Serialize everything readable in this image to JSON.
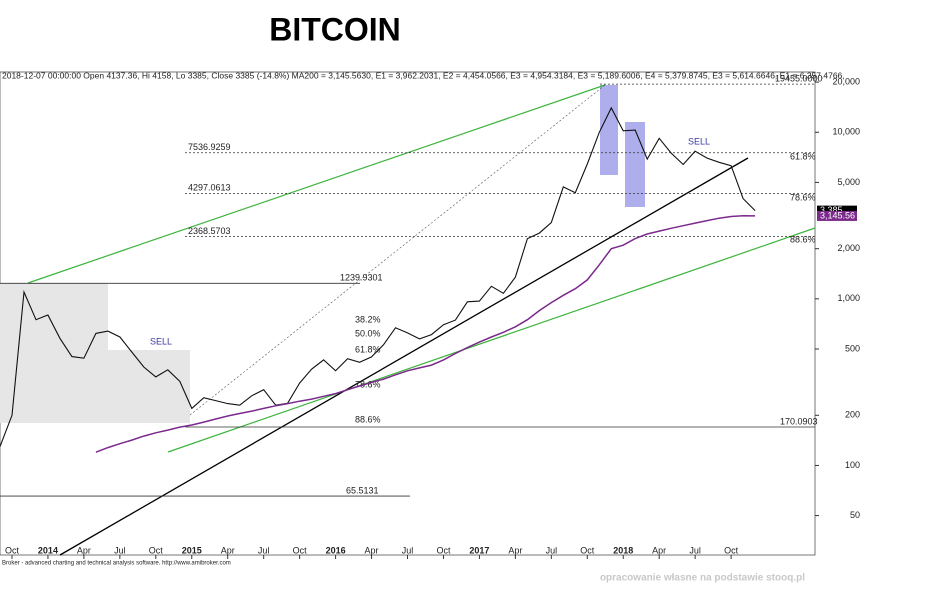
{
  "chart_data": {
    "type": "line",
    "title": "BITCOIN",
    "info": "2018-12-07 00:00:00 Open 4137.36, Hi 4158, Lo 3385, Close 3385 (-14.8%) MA200 = 3,145.5630, E1 = 3,962.2031, E2 = 4,454.0566, E3 = 4,954.3184, E3 = 5,189.6006, E4 = 5,379.8745, E3 = 5,614.6646, E1 = 6,357.4766,",
    "log_scale": true,
    "xlim": [
      "2013-09",
      "2019-05"
    ],
    "ylim": [
      29,
      23000
    ],
    "yticks": [
      50,
      100,
      200,
      500,
      {
        "value": 1000,
        "label": "1,000"
      },
      {
        "value": 2000,
        "label": "2,000"
      },
      {
        "value": 5000,
        "label": "5,000"
      },
      {
        "value": 10000,
        "label": "10,000"
      },
      {
        "value": 20000,
        "label": "20,000"
      }
    ],
    "xticks": [
      {
        "value": "2013-10",
        "label": "Oct"
      },
      {
        "value": "2014-01",
        "label": "2014"
      },
      {
        "value": "2014-04",
        "label": "Apr"
      },
      {
        "value": "2014-07",
        "label": "Jul"
      },
      {
        "value": "2014-10",
        "label": "Oct"
      },
      {
        "value": "2015-01",
        "label": "2015"
      },
      {
        "value": "2015-04",
        "label": "Apr"
      },
      {
        "value": "2015-07",
        "label": "Jul"
      },
      {
        "value": "2015-10",
        "label": "Oct"
      },
      {
        "value": "2016-01",
        "label": "2016"
      },
      {
        "value": "2016-04",
        "label": "Apr"
      },
      {
        "value": "2016-07",
        "label": "Jul"
      },
      {
        "value": "2016-10",
        "label": "Oct"
      },
      {
        "value": "2017-01",
        "label": "2017"
      },
      {
        "value": "2017-04",
        "label": "Apr"
      },
      {
        "value": "2017-07",
        "label": "Jul"
      },
      {
        "value": "2017-10",
        "label": "Oct"
      },
      {
        "value": "2018-01",
        "label": "2018"
      },
      {
        "value": "2018-04",
        "label": "Apr"
      },
      {
        "value": "2018-07",
        "label": "Jul"
      },
      {
        "value": "2018-10",
        "label": "Oct"
      }
    ],
    "x": [
      "2013-09",
      "2013-10",
      "2013-11",
      "2013-12",
      "2014-01",
      "2014-02",
      "2014-03",
      "2014-04",
      "2014-05",
      "2014-06",
      "2014-07",
      "2014-08",
      "2014-09",
      "2014-10",
      "2014-11",
      "2014-12",
      "2015-01",
      "2015-02",
      "2015-03",
      "2015-04",
      "2015-05",
      "2015-06",
      "2015-07",
      "2015-08",
      "2015-09",
      "2015-10",
      "2015-11",
      "2015-12",
      "2016-01",
      "2016-02",
      "2016-03",
      "2016-04",
      "2016-05",
      "2016-06",
      "2016-07",
      "2016-08",
      "2016-09",
      "2016-10",
      "2016-11",
      "2016-12",
      "2017-01",
      "2017-02",
      "2017-03",
      "2017-04",
      "2017-05",
      "2017-06",
      "2017-07",
      "2017-08",
      "2017-09",
      "2017-10",
      "2017-11",
      "2017-12",
      "2018-01",
      "2018-02",
      "2018-03",
      "2018-04",
      "2018-05",
      "2018-06",
      "2018-07",
      "2018-08",
      "2018-09",
      "2018-10",
      "2018-11",
      "2018-12"
    ],
    "series": [
      {
        "color": "#111111",
        "values": [
          130,
          200,
          1100,
          750,
          800,
          580,
          450,
          440,
          620,
          640,
          590,
          480,
          390,
          340,
          375,
          320,
          220,
          255,
          245,
          235,
          230,
          262,
          285,
          230,
          236,
          312,
          378,
          430,
          370,
          437,
          416,
          448,
          530,
          670,
          625,
          575,
          610,
          700,
          745,
          960,
          970,
          1190,
          1080,
          1350,
          2300,
          2480,
          2870,
          4700,
          4340,
          6450,
          10000,
          14000,
          10200,
          10300,
          6900,
          9200,
          7500,
          6400,
          7700,
          7000,
          6600,
          6300,
          4000,
          3385
        ]
      },
      {
        "color": "#7b2a8c",
        "values": [
          null,
          null,
          null,
          null,
          null,
          null,
          null,
          null,
          120,
          128,
          135,
          142,
          150,
          157,
          163,
          170,
          175,
          182,
          190,
          198,
          205,
          212,
          220,
          228,
          235,
          243,
          250,
          260,
          270,
          285,
          300,
          315,
          330,
          350,
          370,
          385,
          400,
          430,
          470,
          510,
          550,
          590,
          630,
          680,
          750,
          850,
          950,
          1050,
          1150,
          1300,
          1600,
          2000,
          2100,
          2300,
          2450,
          2550,
          2650,
          2750,
          2850,
          2950,
          3050,
          3120,
          3150,
          3145.56
        ]
      }
    ],
    "levels": [
      {
        "value": 19455,
        "label": "19455.0000"
      },
      {
        "value": 7536.9259,
        "label": "7536.9259"
      },
      {
        "value": 4297.0613,
        "label": "4297.0613"
      },
      {
        "value": 2368.5703,
        "label": "2368.5703"
      },
      {
        "value": 1239.9301,
        "label": "1239.9301"
      },
      {
        "value": 170.0903,
        "label": "170.0903"
      },
      {
        "value": 65.5131,
        "label": "65.5131"
      }
    ],
    "price_tags": [
      {
        "value": 3385,
        "label": "3,385",
        "color": "#000000"
      },
      {
        "value": 3145.56,
        "label": "3,145.56",
        "color": "#7b2a8c"
      }
    ],
    "fib_labels": [
      "61.8%",
      "78.6%",
      "88.6%",
      "38.2%",
      "50.0%",
      "61.8%",
      "78.6%",
      "88.6%"
    ],
    "signals": [
      "SELL",
      "SELL"
    ],
    "footer": "Broker - advanced charting and technical analysis software. http://www.amibroker.com",
    "source": "opracowanie własne na podstawie stooq.pl"
  }
}
